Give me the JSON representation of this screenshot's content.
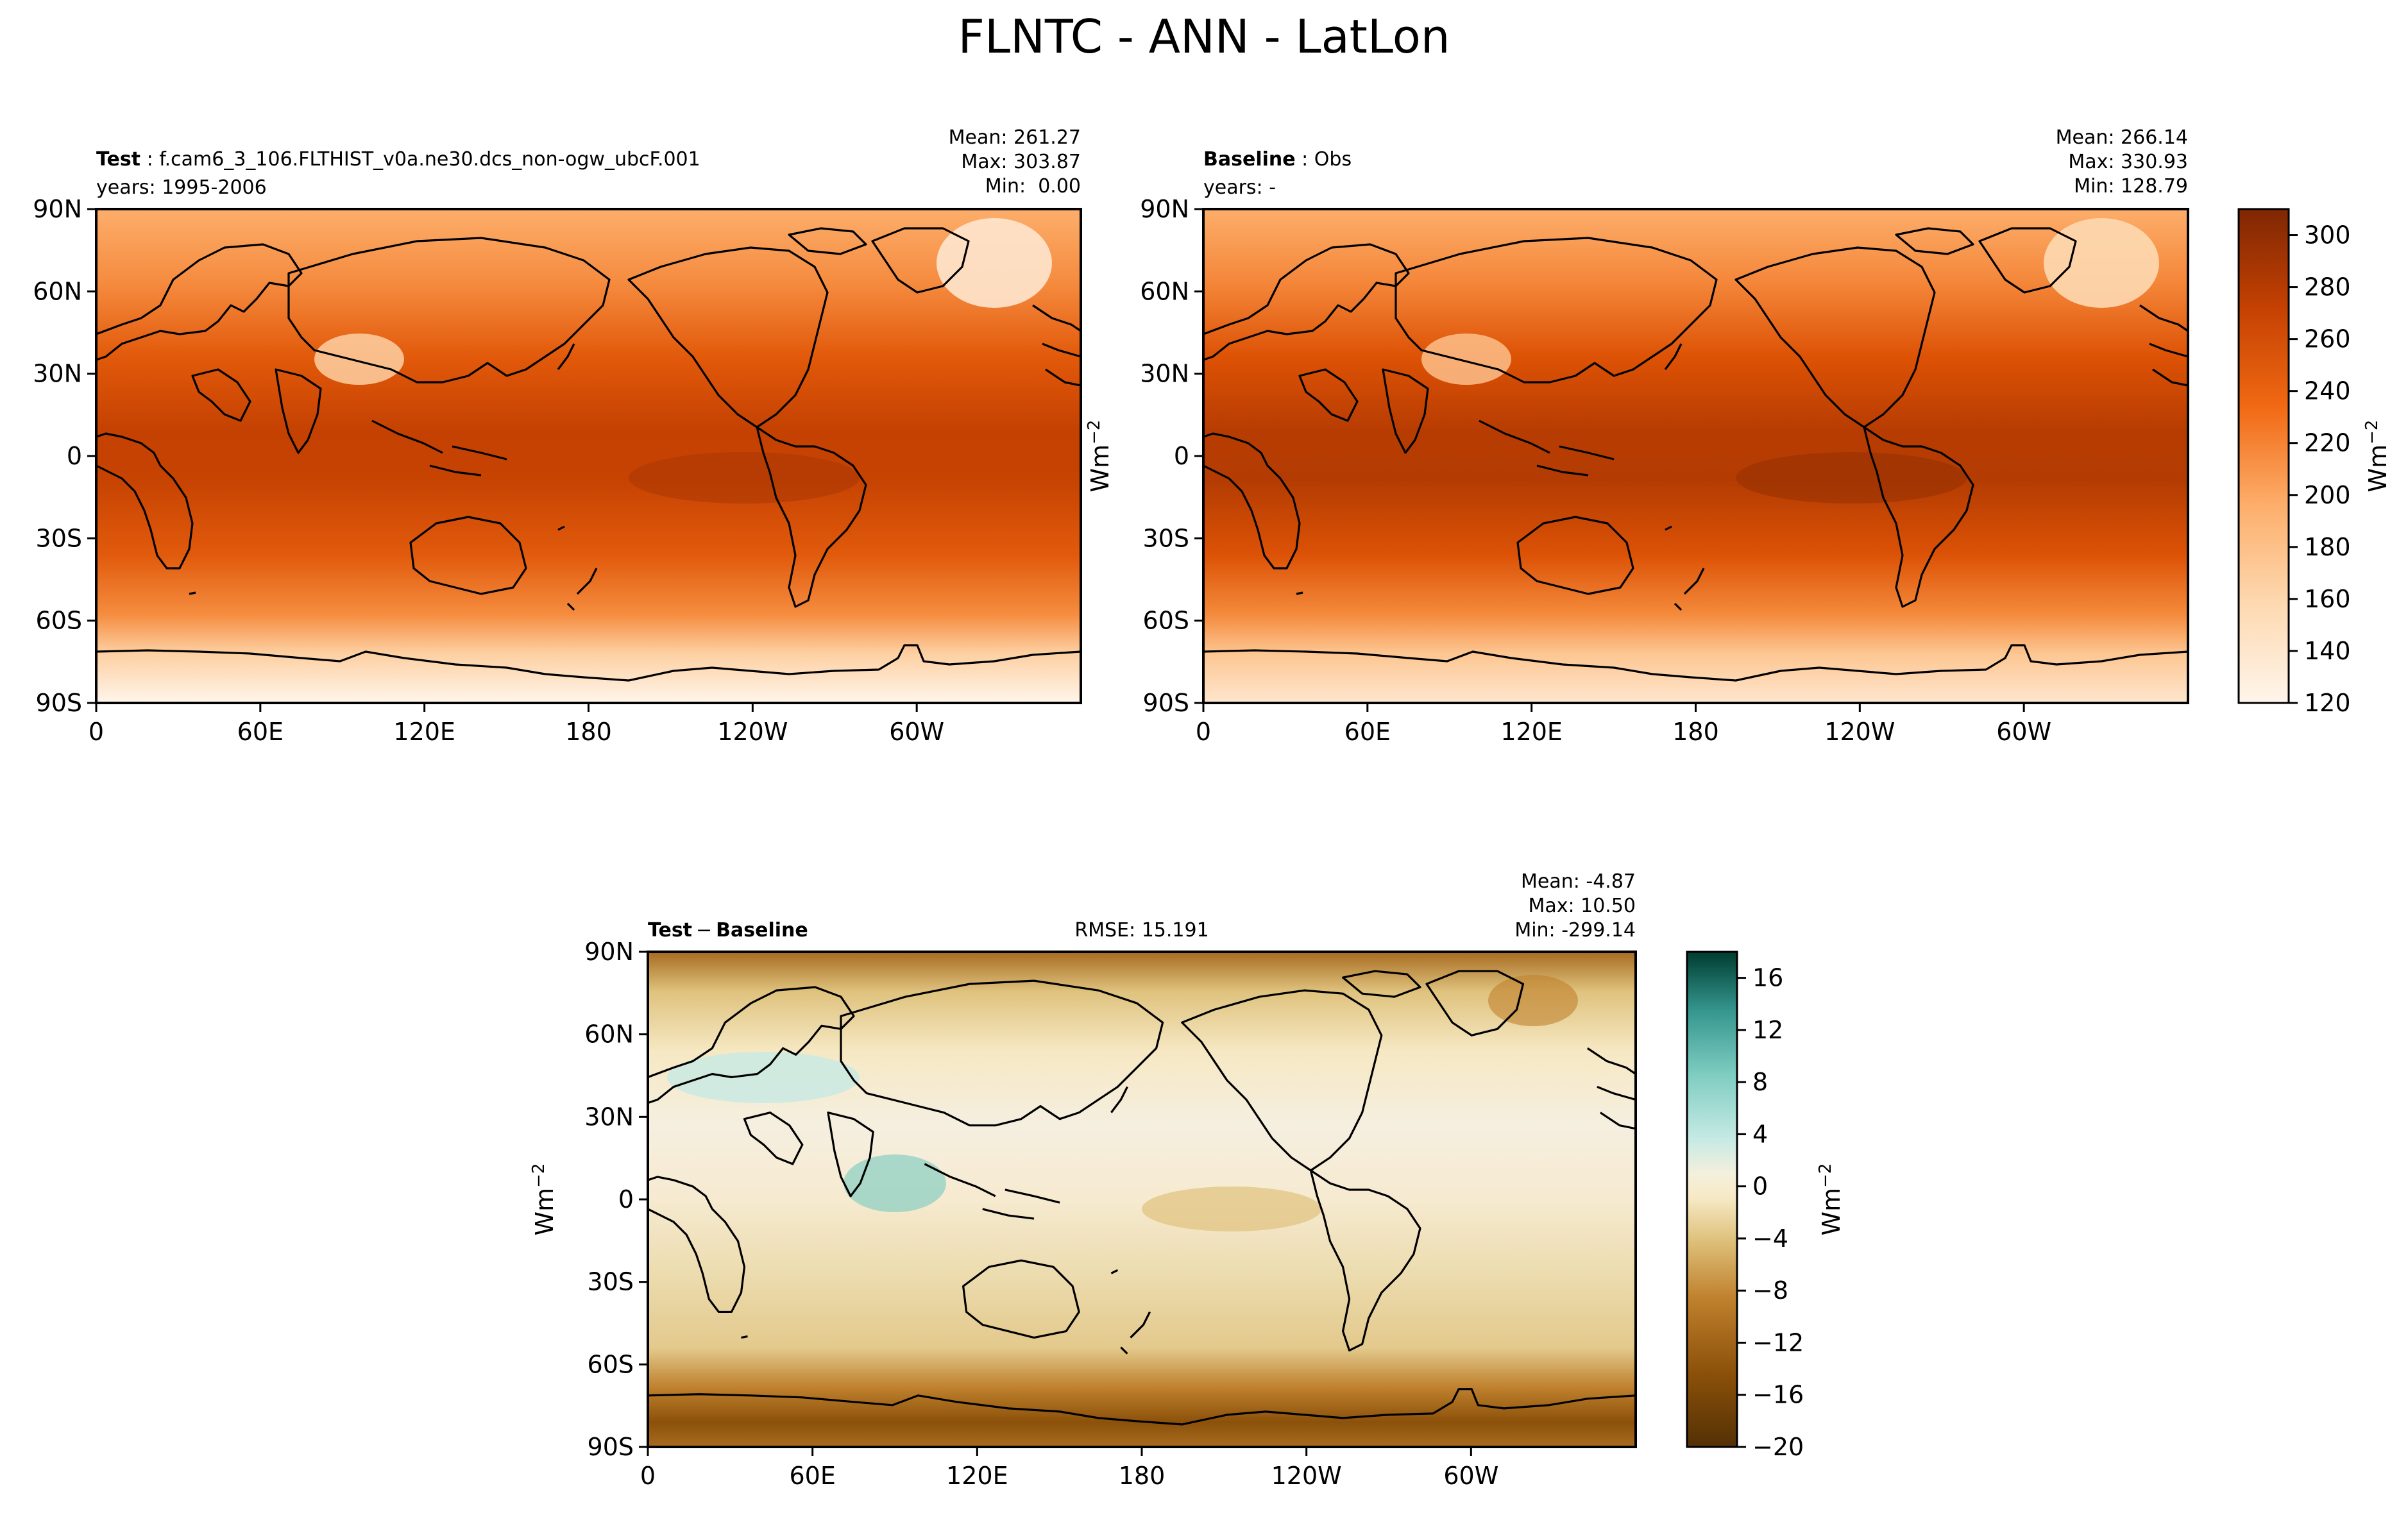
{
  "figure": {
    "title": "FLNTC - ANN - LatLon"
  },
  "colors": {
    "frame": "#000000",
    "coast": "#000000",
    "oranges_scale": [
      "#fff5eb",
      "#feeedc",
      "#fee6ce",
      "#fdd9b1",
      "#fdd0a2",
      "#fdc08b",
      "#fdae6b",
      "#fd9b4f",
      "#fd8d3c",
      "#f87e2e",
      "#f16913",
      "#e55a0a",
      "#d94801",
      "#c44102",
      "#b13b02",
      "#a63603",
      "#933004",
      "#7f2704"
    ],
    "brbg_scale": [
      "#543005",
      "#744409",
      "#8c510a",
      "#a76b20",
      "#bf812d",
      "#cfa35a",
      "#dfc27d",
      "#e8d29f",
      "#f0e0b8",
      "#f6e8c3",
      "#f5f0dc",
      "#f0f5f4",
      "#d8efec",
      "#c7eae5",
      "#a3dcd2",
      "#80cdc1",
      "#5ab2a8",
      "#35978f",
      "#1b7a73",
      "#01665e",
      "#004e44",
      "#003c30"
    ]
  },
  "chart_data": [
    {
      "type": "heatmap",
      "panel": "test",
      "label_bold": "Test",
      "label_text": "f.cam6_3_106.FLTHIST_v0a.ne30.dcs_non-ogw_ubcF.001",
      "years": "years: 1995-2006",
      "stats": [
        "Mean: 261.27",
        "Max: 303.87",
        "Min:  0.00"
      ],
      "x_ticks": [
        "0",
        "60E",
        "120E",
        "180",
        "120W",
        "60W"
      ],
      "y_ticks": [
        "90N",
        "60N",
        "30N",
        "0",
        "30S",
        "60S",
        "90S"
      ],
      "x_range": [
        0,
        360
      ],
      "y_range": [
        -90,
        90
      ],
      "colormap": "Oranges",
      "values_range": [
        120,
        305
      ],
      "approx_zonal_profile": {
        "lat": [
          -90,
          -75,
          -60,
          -45,
          -30,
          -15,
          0,
          15,
          30,
          45,
          60,
          75,
          90
        ],
        "value": [
          135,
          160,
          215,
          240,
          262,
          282,
          288,
          284,
          268,
          248,
          228,
          205,
          190
        ]
      }
    },
    {
      "type": "heatmap",
      "panel": "baseline",
      "label_bold": "Baseline",
      "label_text": "Obs",
      "years": "years: -",
      "stats": [
        "Mean: 266.14",
        "Max: 330.93",
        "Min: 128.79"
      ],
      "ylabel": "Wm",
      "x_ticks": [
        "0",
        "60E",
        "120E",
        "180",
        "120W",
        "60W"
      ],
      "y_ticks": [
        "90N",
        "60N",
        "30N",
        "0",
        "30S",
        "60S",
        "90S"
      ],
      "x_range": [
        0,
        360
      ],
      "y_range": [
        -90,
        90
      ],
      "colormap": "Oranges",
      "colorbar": {
        "ticks": [
          "120",
          "140",
          "160",
          "180",
          "200",
          "220",
          "240",
          "260",
          "280",
          "300"
        ],
        "range": [
          120,
          310
        ],
        "label": "Wm"
      },
      "approx_zonal_profile": {
        "lat": [
          -90,
          -75,
          -60,
          -45,
          -30,
          -15,
          0,
          15,
          30,
          45,
          60,
          75,
          90
        ],
        "value": [
          150,
          180,
          225,
          250,
          270,
          290,
          292,
          290,
          275,
          255,
          235,
          215,
          200
        ]
      }
    },
    {
      "type": "heatmap",
      "panel": "diff",
      "label_bold_1": "Test",
      "label_minus": "−",
      "label_bold_2": "Baseline",
      "rmse": "RMSE: 15.191",
      "stats": [
        "Mean: -4.87",
        "Max: 10.50",
        "Min: -299.14"
      ],
      "ylabel": "Wm",
      "x_ticks": [
        "0",
        "60E",
        "120E",
        "180",
        "120W",
        "60W"
      ],
      "y_ticks": [
        "90N",
        "60N",
        "30N",
        "0",
        "30S",
        "60S",
        "90S"
      ],
      "x_range": [
        0,
        360
      ],
      "y_range": [
        -90,
        90
      ],
      "colormap": "BrBG",
      "colorbar": {
        "ticks": [
          "16",
          "12",
          "8",
          "4",
          "0",
          "−4",
          "−8",
          "−12",
          "−16",
          "−20"
        ],
        "range": [
          -20,
          18
        ],
        "label": "Wm"
      },
      "approx_zonal_profile": {
        "lat": [
          -90,
          -75,
          -60,
          -45,
          -30,
          -15,
          0,
          15,
          30,
          45,
          60,
          75,
          90
        ],
        "value": [
          -16,
          -14,
          -8,
          -6,
          -6,
          -4,
          -2,
          -4,
          -3,
          -2,
          -4,
          -6,
          -10
        ]
      }
    }
  ]
}
